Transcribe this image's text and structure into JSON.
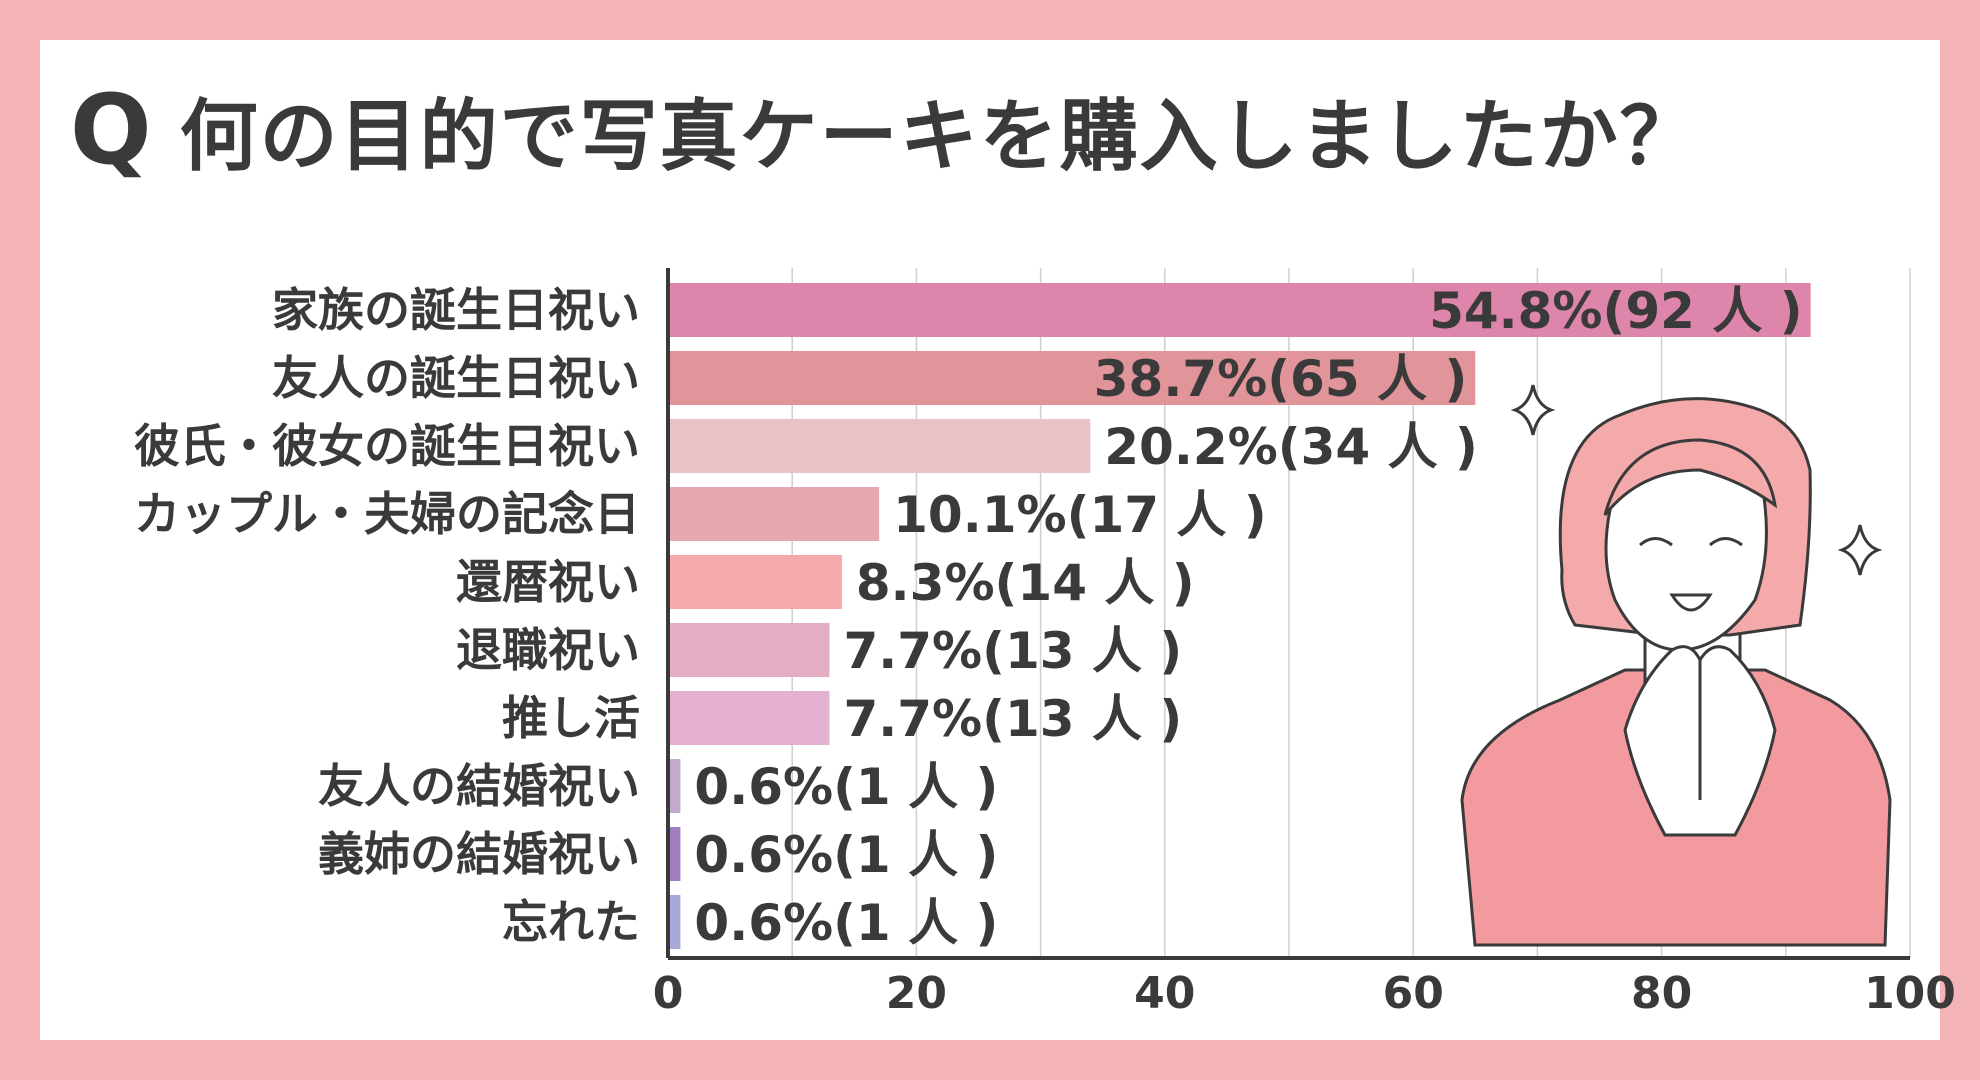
{
  "title": {
    "q": "Q",
    "text": "何の目的で写真ケーキを購入しましたか？"
  },
  "colors": {
    "background": "#f4b3b6",
    "panel": "#ffffff",
    "text": "#3a3a3a"
  },
  "chart_data": {
    "type": "bar",
    "orientation": "horizontal",
    "categories": [
      "家族の誕生日祝い",
      "友人の誕生日祝い",
      "彼氏・彼女の誕生日祝い",
      "カップル・夫婦の記念日",
      "還暦祝い",
      "退職祝い",
      "推し活",
      "友人の結婚祝い",
      "義姉の結婚祝い",
      "忘れた"
    ],
    "values": [
      92,
      65,
      34,
      17,
      14,
      13,
      13,
      1,
      1,
      1
    ],
    "labels": [
      "54.8%(92 人 )",
      "38.7%(65 人 )",
      "20.2%(34 人 )",
      "10.1%(17 人 )",
      "8.3%(14 人 )",
      "7.7%(13 人 )",
      "7.7%(13 人 )",
      "0.6%(1 人 )",
      "0.6%(1 人 )",
      "0.6%(1 人 )"
    ],
    "bar_colors": [
      "#dd85aa",
      "#e19499",
      "#e8c2c6",
      "#e4a8ae",
      "#f4aaa8",
      "#e3aec3",
      "#e5b1d2",
      "#c4a9cf",
      "#9f7fbd",
      "#a8a9d8"
    ],
    "xlim": [
      0,
      100
    ],
    "xticks": [
      "0",
      "20",
      "40",
      "60",
      "80",
      "100"
    ],
    "grid": true
  },
  "illustration": {
    "name": "smiling-woman-illustration",
    "colors": {
      "hair": "#f4aaaa",
      "skin": "#ffffff",
      "sweater": "#f39a9f",
      "outline": "#3a3a3a"
    }
  }
}
